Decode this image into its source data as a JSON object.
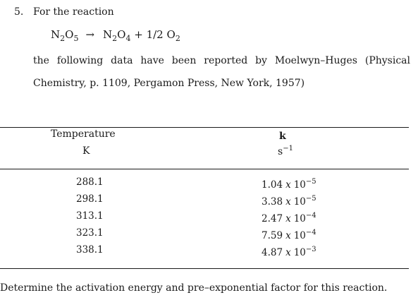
{
  "problem": {
    "number": "5.",
    "intro": "For the reaction",
    "equation": {
      "reactant": {
        "base": "N",
        "sub1": "2",
        "mid": "O",
        "sub2": "5"
      },
      "arrow": "→",
      "product1": {
        "base": "N",
        "sub1": "2",
        "mid": "O",
        "sub2": "4"
      },
      "plus": "+ 1/2",
      "product2": {
        "base": "O",
        "sub": "2"
      }
    },
    "paragraph_line1": "the following data have been reported by Moelwyn–Huges (Physical",
    "paragraph_line2": "Chemistry, p. 1109, Pergamon Press, New York, 1957)"
  },
  "table": {
    "headers": {
      "temperature": "Temperature",
      "temperature_unit": "K",
      "k": "k",
      "k_unit_base": "s",
      "k_unit_exp": "−1"
    },
    "rows": [
      {
        "temperature": "288.1",
        "mantissa": "1.04",
        "times": "x",
        "base": "10",
        "exp": "−5"
      },
      {
        "temperature": "298.1",
        "mantissa": "3.38",
        "times": "x",
        "base": "10",
        "exp": "−5"
      },
      {
        "temperature": "313.1",
        "mantissa": "2.47",
        "times": "x",
        "base": "10",
        "exp": "−4"
      },
      {
        "temperature": "323.1",
        "mantissa": "7.59",
        "times": "x",
        "base": "10",
        "exp": "−4"
      },
      {
        "temperature": "338.1",
        "mantissa": "4.87",
        "times": "x",
        "base": "10",
        "exp": "−3"
      }
    ]
  },
  "closing": "Determine the activation energy and pre–exponential factor for this reaction."
}
